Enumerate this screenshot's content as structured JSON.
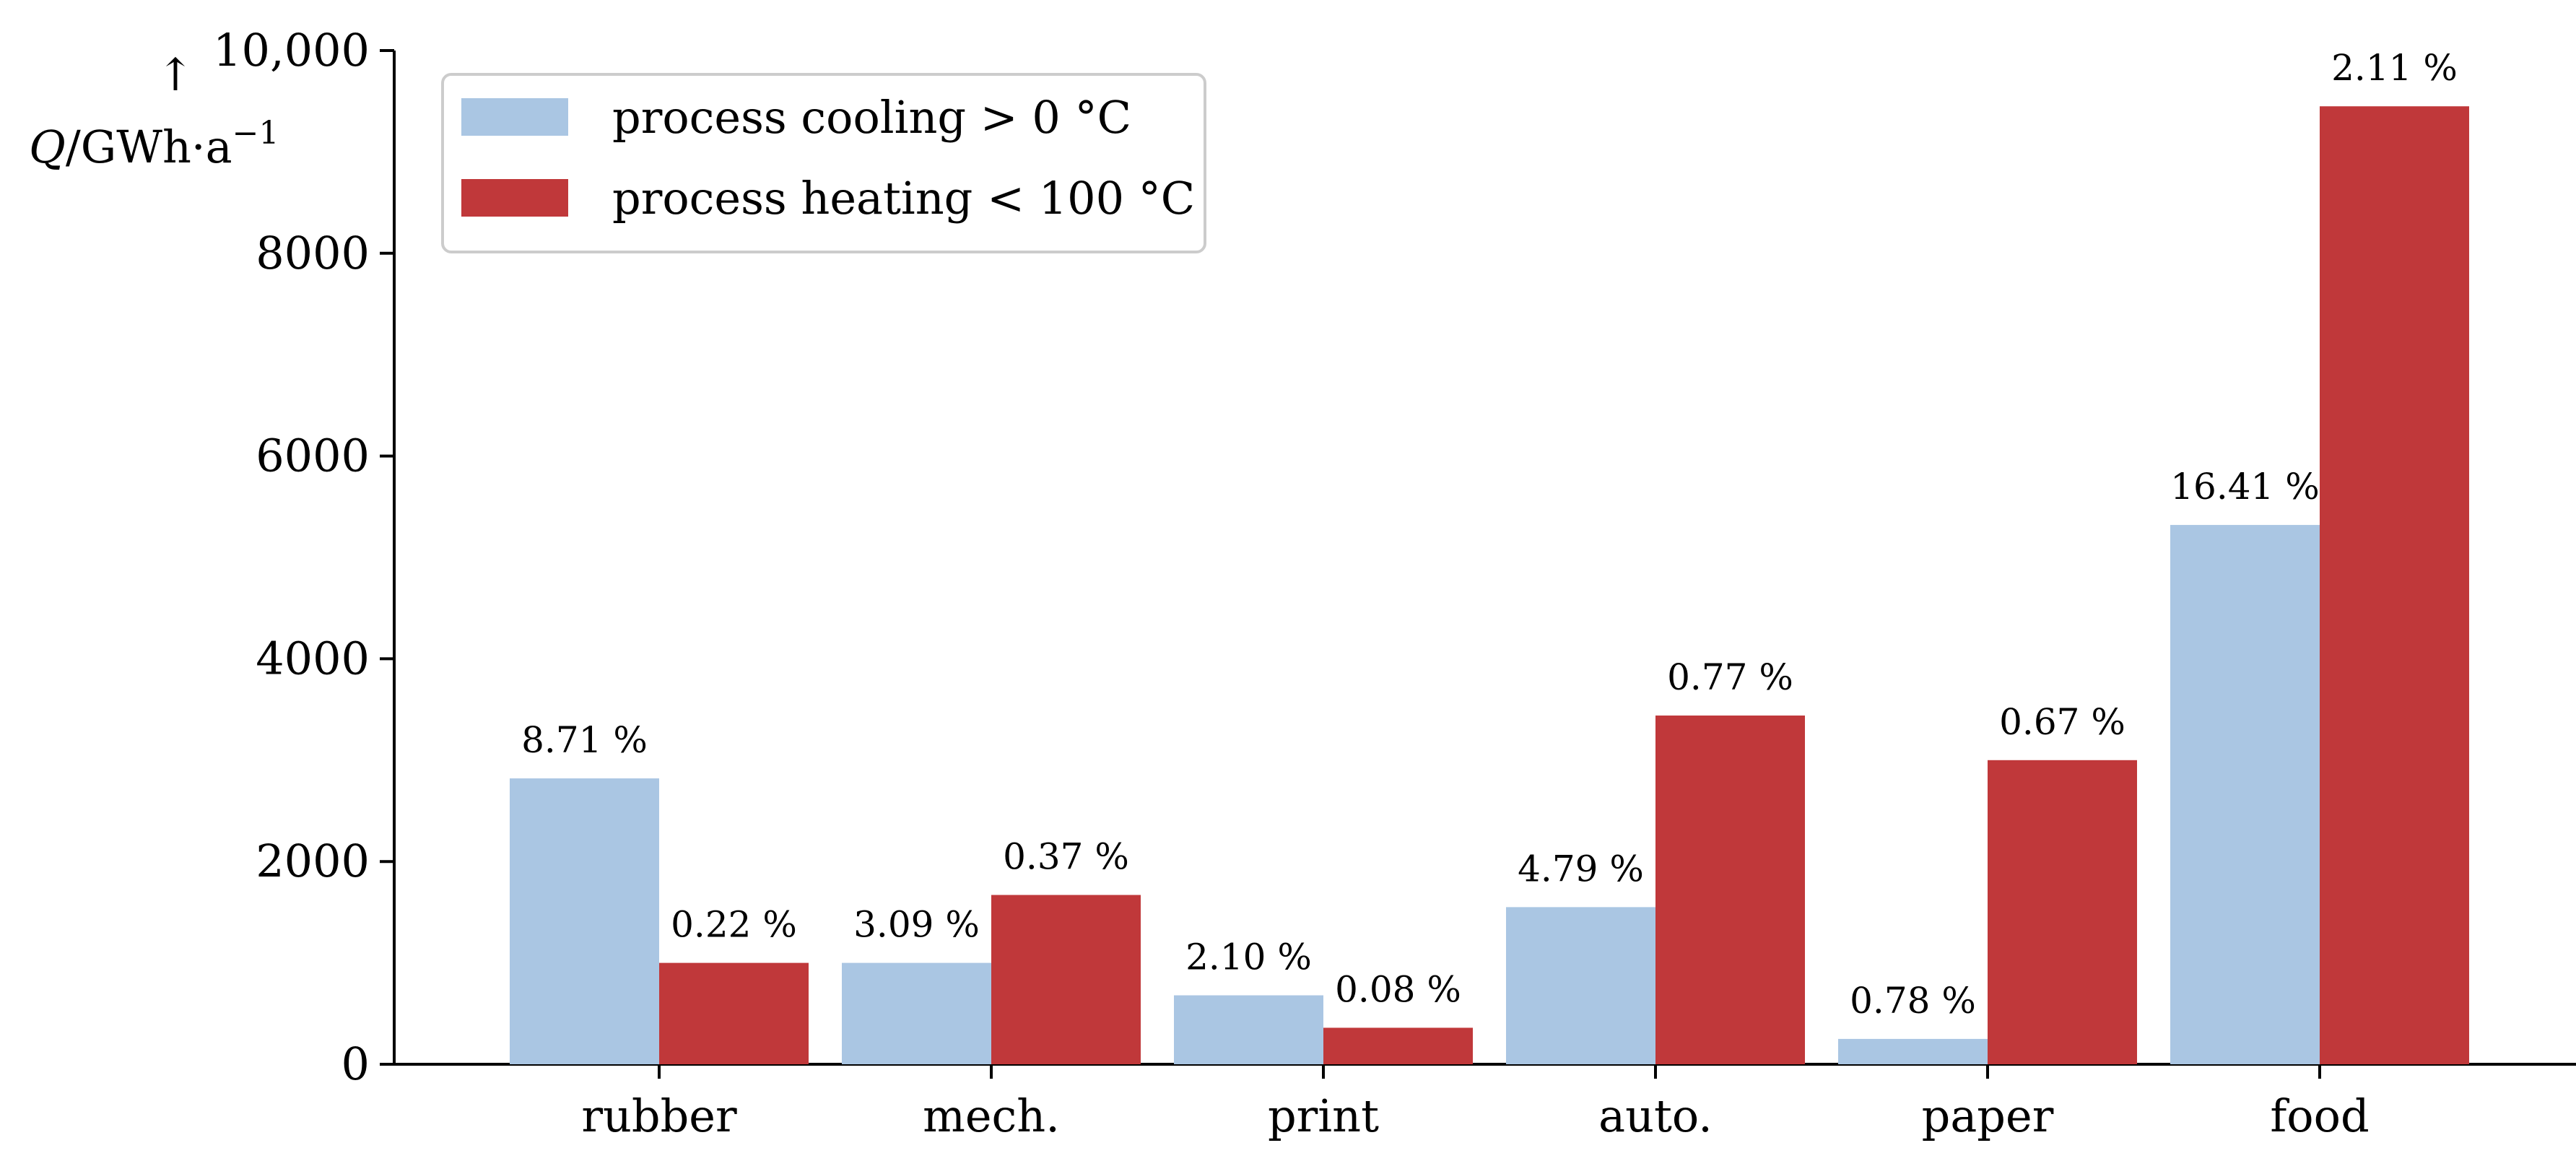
{
  "chart_data": {
    "type": "bar",
    "title": "",
    "xlabel": "",
    "ylabel": "Q/GWh·a⁻¹",
    "ylabel_arrow": "↑",
    "ylabel_parts": {
      "symbol": "Q",
      "unit": "/GWh·a",
      "exponent": "−1"
    },
    "ylim": [
      0,
      10000
    ],
    "yticks": [
      0,
      2000,
      4000,
      6000,
      8000,
      10000
    ],
    "ytick_labels": [
      "0",
      "2000",
      "4000",
      "6000",
      "8000",
      "10,000"
    ],
    "grid": false,
    "legend_position": "top-left",
    "categories": [
      "rubber",
      "mech.",
      "print",
      "auto.",
      "paper",
      "food"
    ],
    "series": [
      {
        "name": "process cooling > 0 °C",
        "color": "#aac6e3",
        "values": [
          2820,
          1000,
          680,
          1550,
          250,
          5320
        ],
        "labels": [
          "8.71 %",
          "3.09 %",
          "2.10 %",
          "4.79 %",
          "0.78 %",
          "16.41 %"
        ]
      },
      {
        "name": "process heating < 100 °C",
        "color": "#c0383a",
        "values": [
          1000,
          1670,
          360,
          3440,
          3000,
          9450
        ],
        "labels": [
          "0.22 %",
          "0.37 %",
          "0.08 %",
          "0.77 %",
          "0.67 %",
          "2.11 %"
        ]
      }
    ]
  }
}
